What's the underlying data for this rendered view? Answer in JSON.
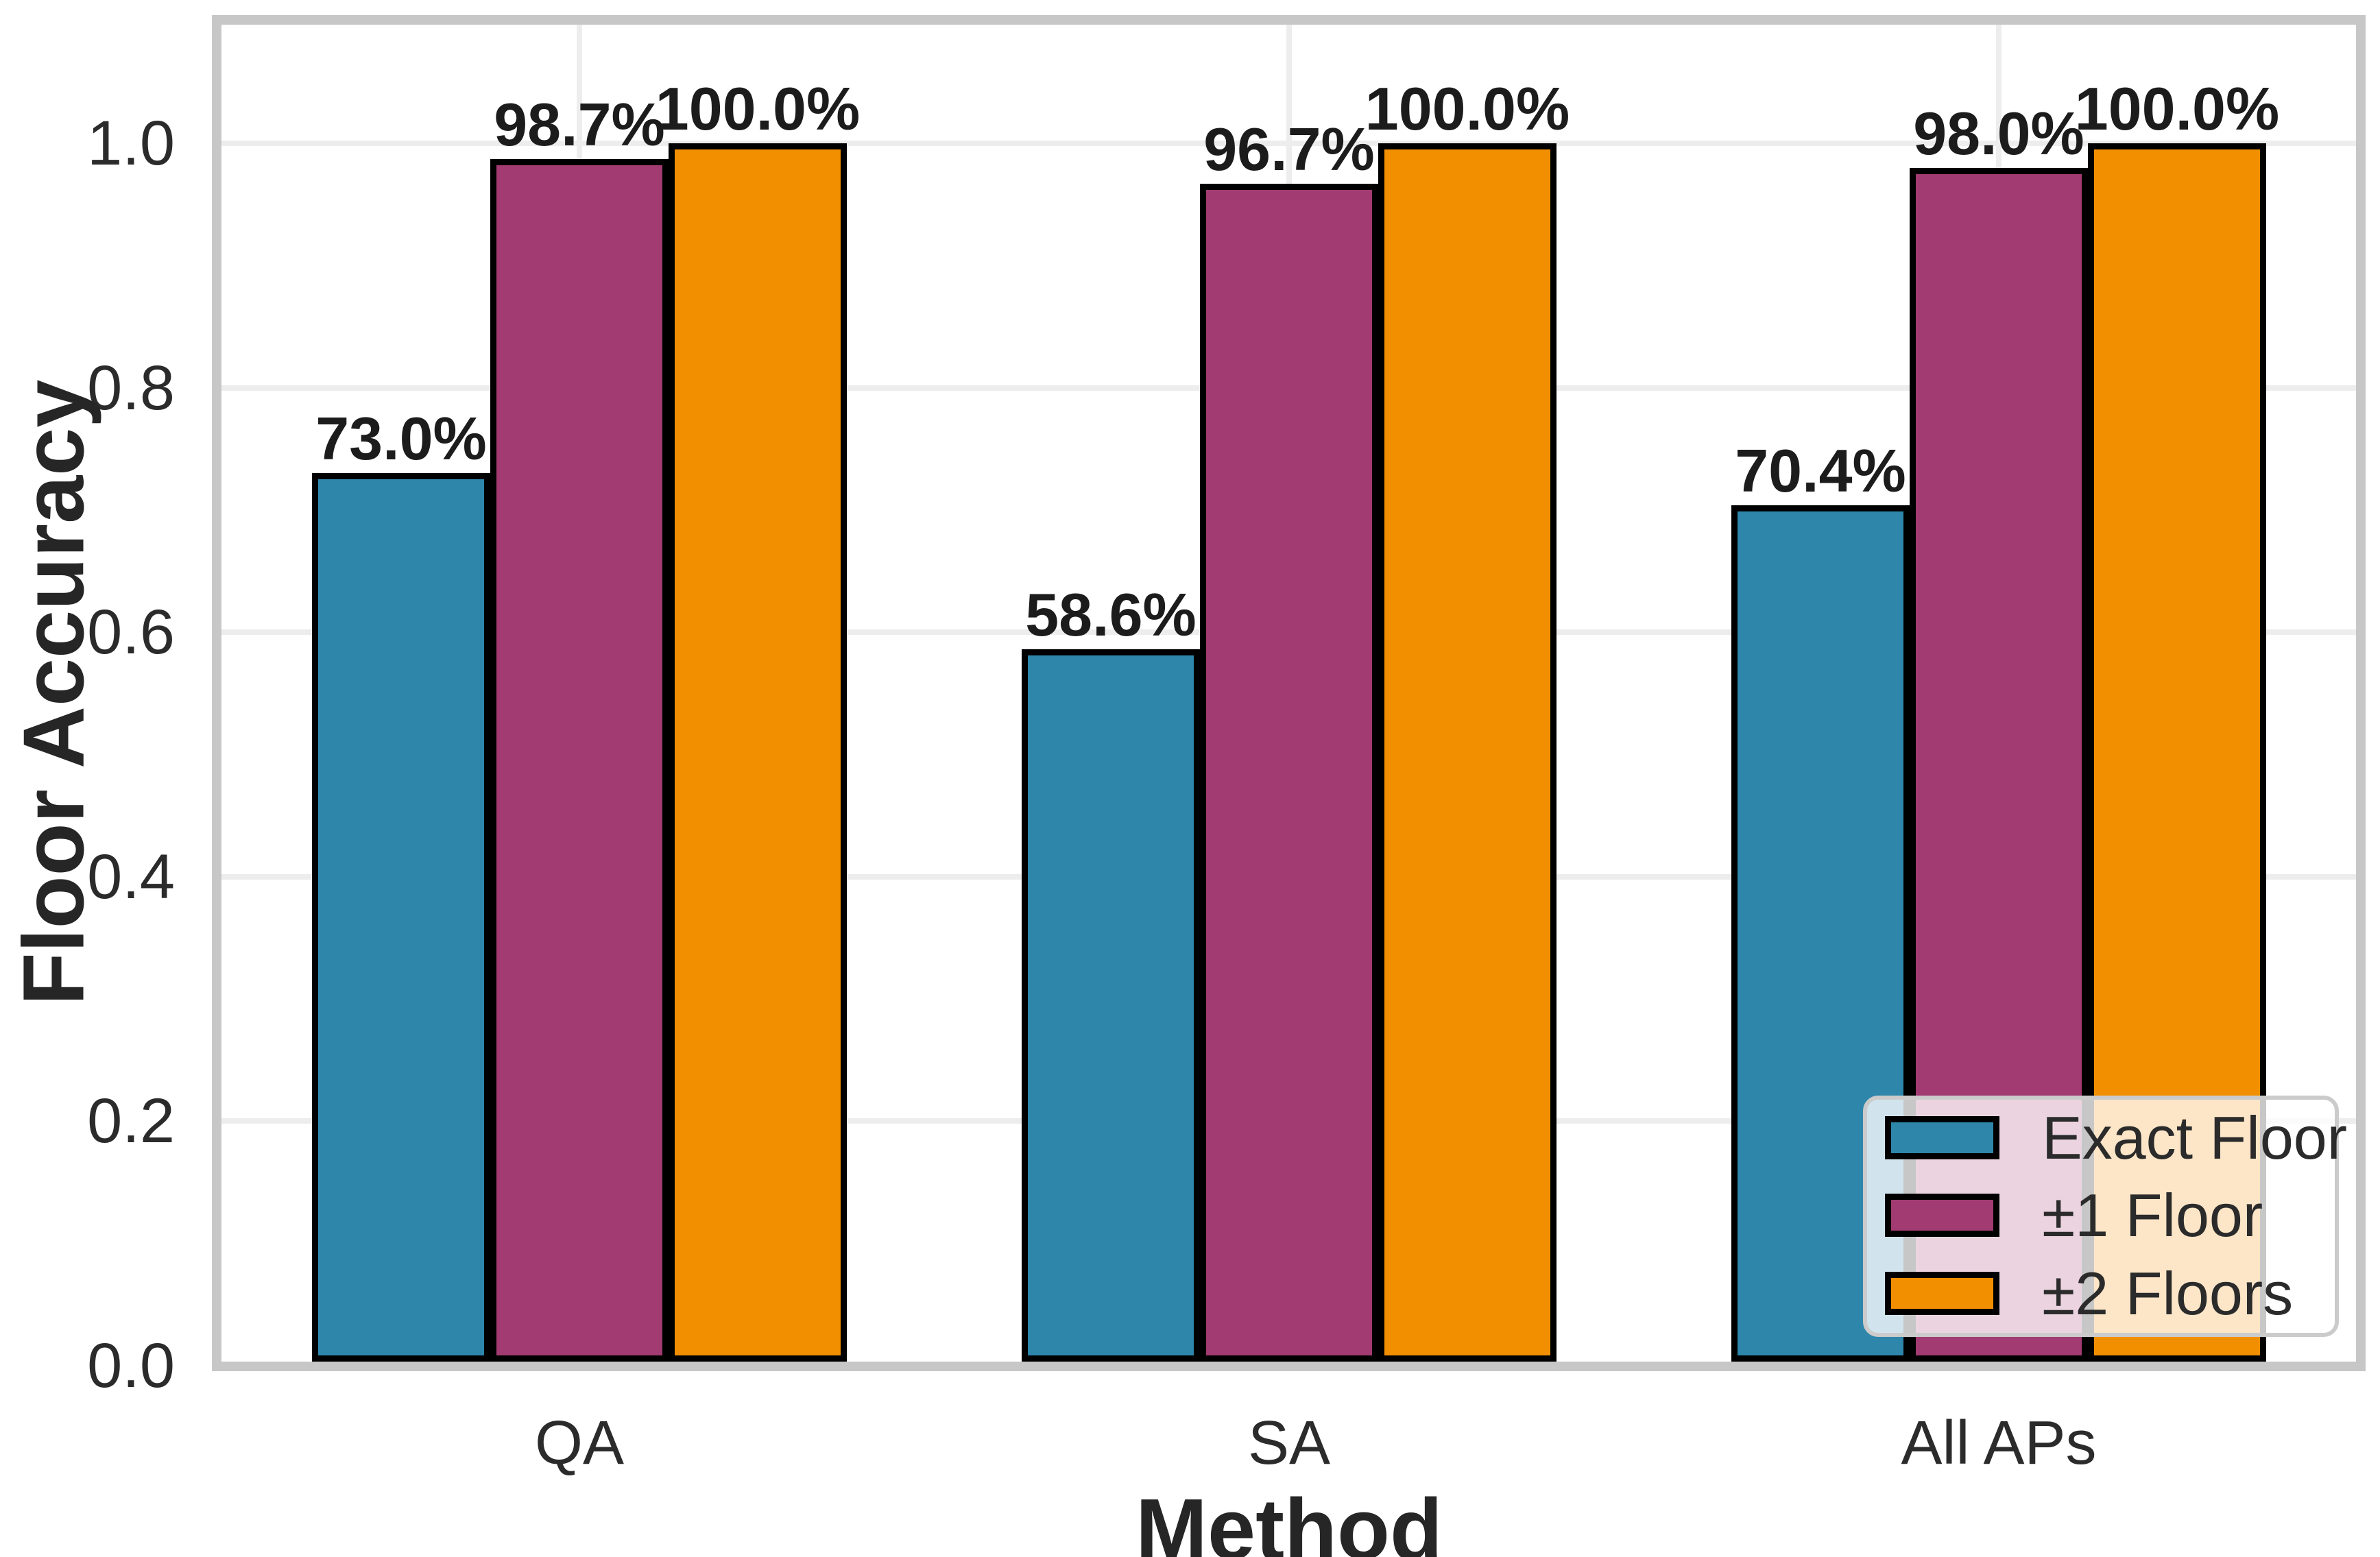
{
  "chart_data": {
    "type": "bar",
    "title": "",
    "xlabel": "Method",
    "ylabel": "Floor Accuracy",
    "categories": [
      "QA",
      "SA",
      "All APs"
    ],
    "series": [
      {
        "name": "Exact Floor",
        "color": "#2E86AB",
        "values": [
          0.73,
          0.586,
          0.704
        ],
        "value_labels": [
          "73.0%",
          "58.6%",
          "70.4%"
        ]
      },
      {
        "name": "±1 Floor",
        "color": "#A23B72",
        "values": [
          0.987,
          0.967,
          0.98
        ],
        "value_labels": [
          "98.7%",
          "96.7%",
          "98.0%"
        ]
      },
      {
        "name": "±2 Floors",
        "color": "#F18F01",
        "values": [
          1.0,
          1.0,
          1.0
        ],
        "value_labels": [
          "100.0%",
          "100.0%",
          "100.0%"
        ]
      }
    ],
    "ylim": [
      0,
      1.1
    ],
    "yticks": {
      "labels": [
        "0.0",
        "0.2",
        "0.4",
        "0.6",
        "0.8",
        "1.0"
      ],
      "values": [
        0,
        0.2,
        0.4,
        0.6,
        0.8,
        1.0
      ]
    },
    "grid": true,
    "legend": {
      "position": "lower right",
      "entries": [
        "Exact Floor",
        "±1 Floor",
        "±2 Floors"
      ]
    },
    "bar_edge_color": "#000000"
  },
  "style_colors": {
    "bar_edge": "#000000",
    "gridline": "#ededed",
    "spine": "#c7c7c7",
    "tick_text": "#2b2b2b",
    "value_text": "#1c1c1c",
    "legend_border": "#cbcbcb"
  }
}
